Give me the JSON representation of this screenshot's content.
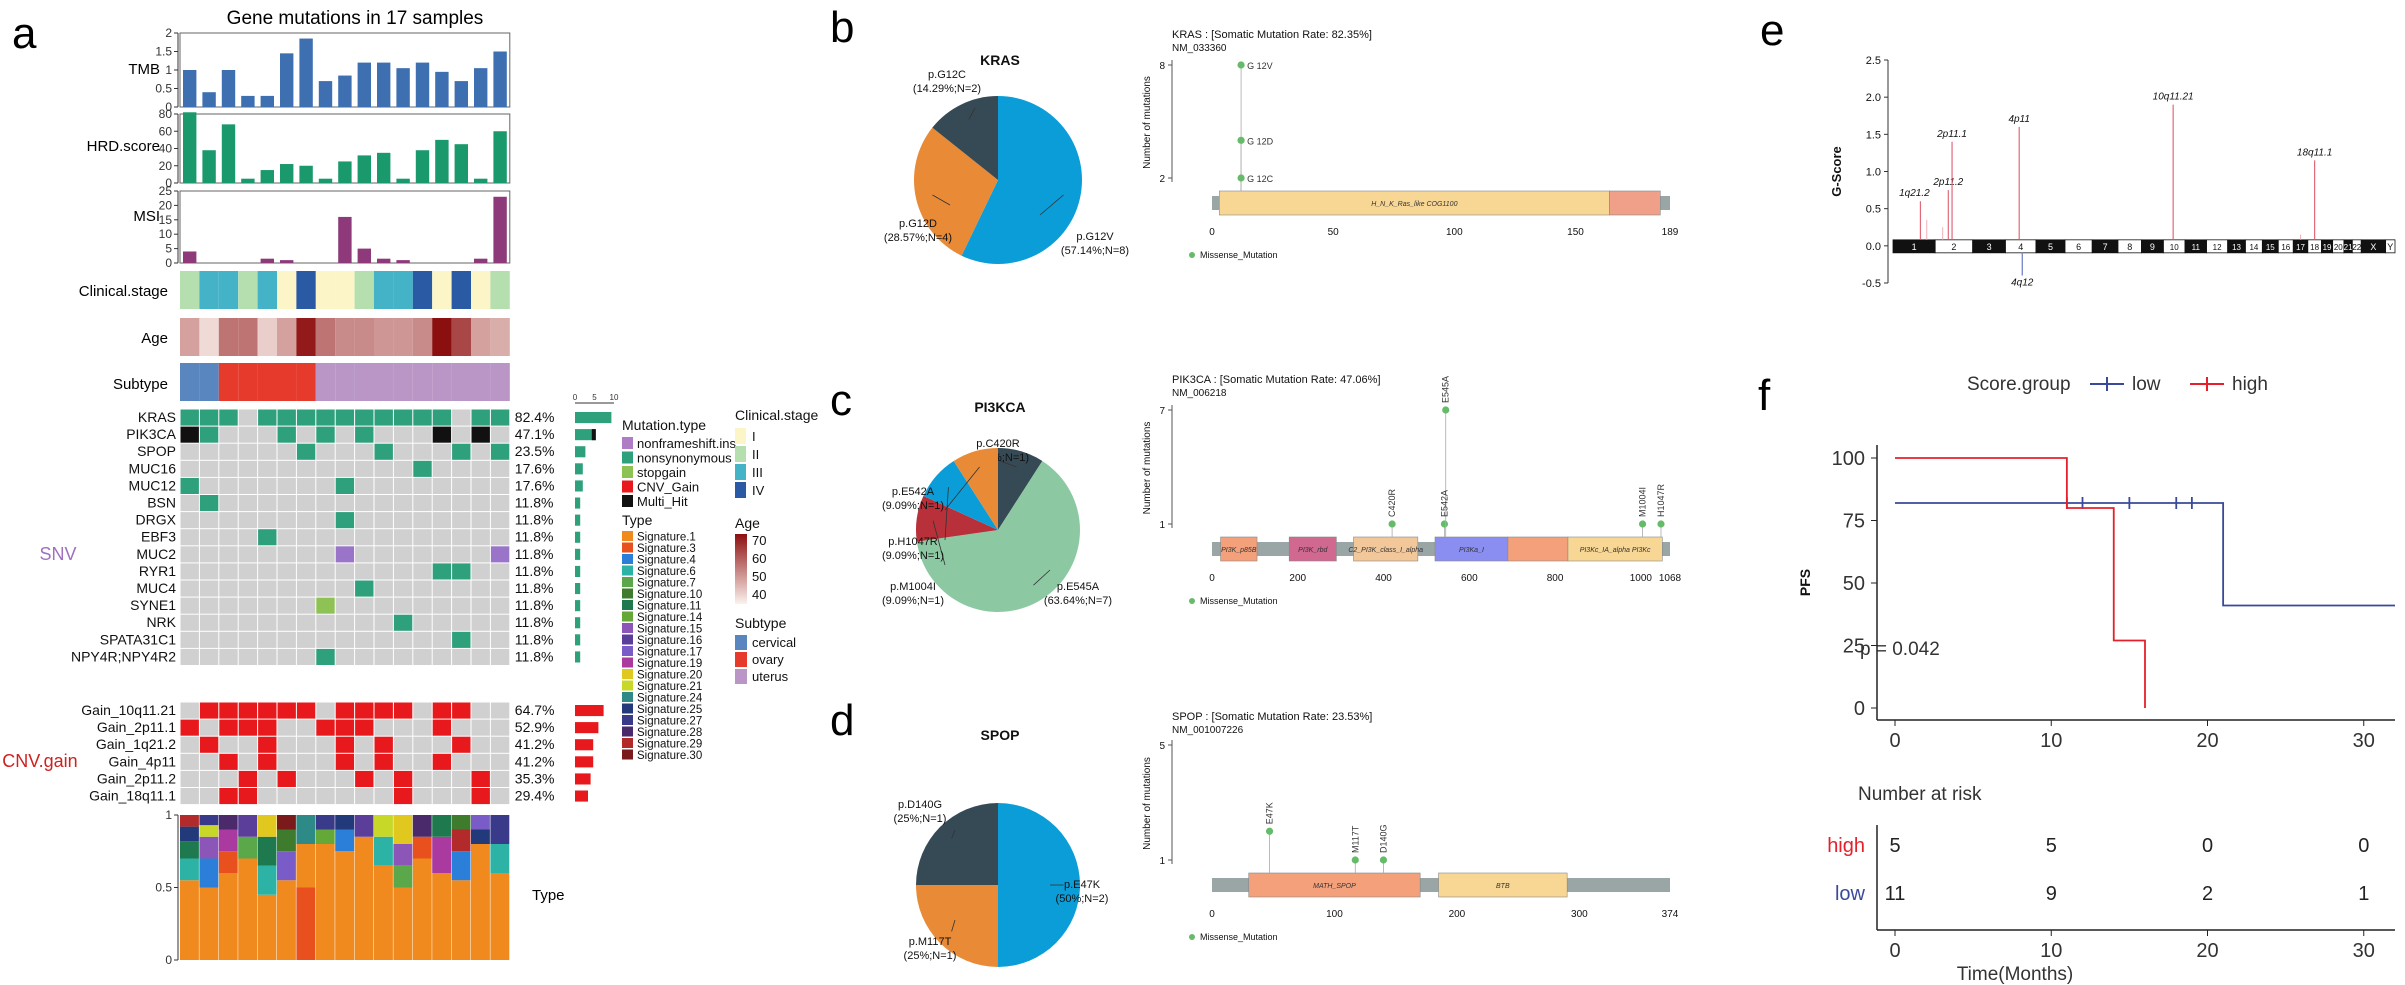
{
  "panel_letters": {
    "a": "a",
    "b": "b",
    "c": "c",
    "d": "d",
    "e": "e",
    "f": "f"
  },
  "colors": {
    "tmb": "#3e6fb0",
    "hrd": "#1a9a6c",
    "msi": "#8e3a7a",
    "mut_green": "#2ea07c",
    "mut_black": "#111111",
    "cnv": "#e8191c",
    "grey": "#d0d0d0",
    "stage1": "#fbf5c8",
    "stage2": "#b6dfb0",
    "stage3": "#44b3c8",
    "stage4": "#2a5aa4",
    "cervical": "#5a86c0",
    "ovary": "#e63a2c",
    "uterus": "#b996c6",
    "lolli": "#66bb6a",
    "kras_blue": "#0b9dd8",
    "kras_orange": "#e88a36",
    "kras_dark": "#364a55",
    "pik_green": "#8cc9a3",
    "low": "#3a4a9a",
    "high": "#e6202a"
  },
  "panel_a": {
    "title": "Gene mutations in 17 samples",
    "tracks": {
      "tmb": "TMB",
      "hrd": "HRD.score",
      "msi": "MSI",
      "stage": "Clinical.stage",
      "age": "Age",
      "subtype": "Subtype",
      "type": "Type"
    },
    "tmb_axis": [
      "0",
      "0.5",
      "1",
      "1.5",
      "2"
    ],
    "hrd_axis": [
      "0",
      "20",
      "40",
      "60",
      "80"
    ],
    "msi_axis": [
      "0",
      "5",
      "10",
      "15",
      "20",
      "25"
    ],
    "type_axis": [
      "0",
      "0.5",
      "1"
    ],
    "tmb_values": [
      1.0,
      0.4,
      1.0,
      0.3,
      0.3,
      1.45,
      1.85,
      0.7,
      0.85,
      1.2,
      1.2,
      1.05,
      1.2,
      0.95,
      0.7,
      1.05,
      1.5
    ],
    "hrd_values": [
      82,
      38,
      68,
      5,
      15,
      22,
      20,
      5,
      25,
      32,
      35,
      5,
      38,
      50,
      45,
      5,
      60
    ],
    "msi_values": [
      4,
      0,
      0,
      0,
      1.5,
      1,
      0,
      0,
      16,
      5,
      1.5,
      1,
      0,
      0,
      0,
      1.5,
      23
    ],
    "stage_values": [
      "II",
      "III",
      "III",
      "II",
      "III",
      "I",
      "IV",
      "I",
      "I",
      "II",
      "III",
      "III",
      "IV",
      "I",
      "IV",
      "I",
      "II"
    ],
    "age_values": [
      0.35,
      0.1,
      0.55,
      0.55,
      0.15,
      0.35,
      0.95,
      0.55,
      0.45,
      0.45,
      0.4,
      0.4,
      0.45,
      1.0,
      0.75,
      0.35,
      0.3
    ],
    "subtype_values": [
      "cervical",
      "cervical",
      "ovary",
      "ovary",
      "ovary",
      "ovary",
      "ovary",
      "uterus",
      "uterus",
      "uterus",
      "uterus",
      "uterus",
      "uterus",
      "uterus",
      "uterus",
      "uterus",
      "uterus"
    ],
    "snv_group": "SNV",
    "cnv_group": "CNV.gain",
    "scale_labels": [
      "0",
      "5",
      "10"
    ],
    "genes": [
      {
        "name": "KRAS",
        "pct": "82.4%",
        "count": 14,
        "row": "GGGXGGGGGGGGGGXGG"
      },
      {
        "name": "PIK3CA",
        "pct": "47.1%",
        "count": 8,
        "row": "KGXXXGXGXGXXXKXKX"
      },
      {
        "name": "SPOP",
        "pct": "23.5%",
        "count": 4,
        "row": "XXXXXXGXXXGXXXGXG"
      },
      {
        "name": "MUC16",
        "pct": "17.6%",
        "count": 3,
        "row": "XXXXXXXXXXXXGXXXX"
      },
      {
        "name": "MUC12",
        "pct": "17.6%",
        "count": 3,
        "row": "GXXXXXXXGXXXXXXXX"
      },
      {
        "name": "BSN",
        "pct": "11.8%",
        "count": 2,
        "row": "XGXXXXXXXXXXXXXXX"
      },
      {
        "name": "DRGX",
        "pct": "11.8%",
        "count": 2,
        "row": "XXXXXXXXGXXXXXXXX"
      },
      {
        "name": "EBF3",
        "pct": "11.8%",
        "count": 2,
        "row": "XXXXGXXXXXXXXXXXX"
      },
      {
        "name": "MUC2",
        "pct": "11.8%",
        "count": 2,
        "row": "XXXXXXXXPXXXXXXXP"
      },
      {
        "name": "RYR1",
        "pct": "11.8%",
        "count": 2,
        "row": "XXXXXXXXXXXXXGGXX"
      },
      {
        "name": "MUC4",
        "pct": "11.8%",
        "count": 2,
        "row": "XXXXXXXXXGXXXXXXX"
      },
      {
        "name": "SYNE1",
        "pct": "11.8%",
        "count": 2,
        "row": "XXXXXXXLXXXXXXXXX"
      },
      {
        "name": "NRK",
        "pct": "11.8%",
        "count": 2,
        "row": "XXXXXXXXXXXGXXXXX"
      },
      {
        "name": "SPATA31C1",
        "pct": "11.8%",
        "count": 2,
        "row": "XXXXXXXXXXXXXXGXX"
      },
      {
        "name": "NPY4R;NPY4R2",
        "pct": "11.8%",
        "count": 2,
        "row": "XXXXXXXGXXXXXXXXX"
      }
    ],
    "cnvs": [
      {
        "name": "Gain_10q11.21",
        "pct": "64.7%",
        "count": 11,
        "row": "XRRRRRRXRRRRXRRXX"
      },
      {
        "name": "Gain_2p11.1",
        "pct": "52.9%",
        "count": 9,
        "row": "RXRRRXXRRRXXXRXXX"
      },
      {
        "name": "Gain_1q21.2",
        "pct": "41.2%",
        "count": 7,
        "row": "XRXXRXXXRXRXXXRXX"
      },
      {
        "name": "Gain_4p11",
        "pct": "41.2%",
        "count": 7,
        "row": "XXRXRXXXRXRXXRXXX"
      },
      {
        "name": "Gain_2p11.2",
        "pct": "35.3%",
        "count": 6,
        "row": "XXXRXRXXXRXRXXXRX"
      },
      {
        "name": "Gain_18q11.1",
        "pct": "29.4%",
        "count": 5,
        "row": "XXRRXXXXXXXRXXXRX"
      }
    ],
    "legend_mutation_title": "Mutation.type",
    "legend_mutation": [
      {
        "label": "nonframeshift.ins",
        "color": "#b07cc6"
      },
      {
        "label": "nonsynonymous",
        "color": "#2ea07c"
      },
      {
        "label": "stopgain",
        "color": "#8fc255"
      },
      {
        "label": "CNV_Gain",
        "color": "#e8191c"
      },
      {
        "label": "Multi_Hit",
        "color": "#111111"
      }
    ],
    "legend_stage_title": "Clinical.stage",
    "legend_stage": [
      {
        "label": "I",
        "color": "#fbf5c8"
      },
      {
        "label": "II",
        "color": "#b6dfb0"
      },
      {
        "label": "III",
        "color": "#44b3c8"
      },
      {
        "label": "IV",
        "color": "#2a5aa4"
      }
    ],
    "legend_type_title": "Type",
    "legend_signatures": [
      {
        "label": "Signature.1",
        "color": "#f08a1e"
      },
      {
        "label": "Signature.3",
        "color": "#e8501e"
      },
      {
        "label": "Signature.4",
        "color": "#2c7fd8"
      },
      {
        "label": "Signature.6",
        "color": "#2db3a6"
      },
      {
        "label": "Signature.7",
        "color": "#5aa84a"
      },
      {
        "label": "Signature.10",
        "color": "#3e7b2c"
      },
      {
        "label": "Signature.11",
        "color": "#1e7a4e"
      },
      {
        "label": "Signature.14",
        "color": "#64a838"
      },
      {
        "label": "Signature.15",
        "color": "#8c56b8"
      },
      {
        "label": "Signature.16",
        "color": "#5a3e9a"
      },
      {
        "label": "Signature.17",
        "color": "#7a5cc8"
      },
      {
        "label": "Signature.19",
        "color": "#aa3aa0"
      },
      {
        "label": "Signature.20",
        "color": "#e0c81e"
      },
      {
        "label": "Signature.21",
        "color": "#c8d828"
      },
      {
        "label": "Signature.24",
        "color": "#2e8a86"
      },
      {
        "label": "Signature.25",
        "color": "#233a7a"
      },
      {
        "label": "Signature.27",
        "color": "#3a3a8a"
      },
      {
        "label": "Signature.28",
        "color": "#4a2a6a"
      },
      {
        "label": "Signature.29",
        "color": "#b22a2a"
      },
      {
        "label": "Signature.30",
        "color": "#7a1a1a"
      }
    ],
    "legend_age_title": "Age",
    "legend_age_ticks": [
      "70",
      "60",
      "50",
      "40"
    ],
    "legend_subtype_title": "Subtype",
    "legend_subtype": [
      {
        "label": "cervical",
        "color": "#5a86c0"
      },
      {
        "label": "ovary",
        "color": "#e63a2c"
      },
      {
        "label": "uterus",
        "color": "#b996c6"
      }
    ]
  },
  "panel_b": {
    "gene": "KRAS",
    "pie": [
      {
        "label": "p.G12V",
        "sub": "(57.14%;N=8)",
        "value": 57.14,
        "color": "#0b9dd8"
      },
      {
        "label": "p.G12D",
        "sub": "(28.57%;N=4)",
        "value": 28.57,
        "color": "#e88a36"
      },
      {
        "label": "p.G12C",
        "sub": "(14.29%;N=2)",
        "value": 14.29,
        "color": "#364a55"
      }
    ],
    "header": "KRAS : [Somatic Mutation Rate: 82.35%]",
    "accession": "NM_033360",
    "ylabel": "Number of mutations",
    "y_ticks": [
      "2",
      "8"
    ],
    "length": 189,
    "x_ticks": [
      "0",
      "50",
      "100",
      "150",
      "189"
    ],
    "domains": [
      {
        "name": "H_N_K_Ras_like",
        "extra": "COG1100",
        "start": 3,
        "end": 164,
        "color": "#f8d795"
      },
      {
        "name": "",
        "extra": "",
        "start": 164,
        "end": 185,
        "color": "#f0a088"
      }
    ],
    "mutations": [
      {
        "label": "G 12V",
        "pos": 12,
        "count": 8
      },
      {
        "label": "G 12D",
        "pos": 12,
        "count": 4
      },
      {
        "label": "G 12C",
        "pos": 12,
        "count": 2
      }
    ],
    "legend": "Missense_Mutation"
  },
  "panel_c": {
    "gene": "PI3KCA",
    "pie": [
      {
        "label": "p.C420R",
        "sub": "(9.09%;N=1)",
        "value": 9.09,
        "color": "#364a55"
      },
      {
        "label": "p.E545A",
        "sub": "(63.64%;N=7)",
        "value": 63.64,
        "color": "#8cc9a3"
      },
      {
        "label": "p.M1004I",
        "sub": "(9.09%;N=1)",
        "value": 9.09,
        "color": "#b8303a"
      },
      {
        "label": "p.H1047R",
        "sub": "(9.09%;N=1)",
        "value": 9.09,
        "color": "#0b9dd8"
      },
      {
        "label": "p.E542A",
        "sub": "(9.09%;N=1)",
        "value": 9.09,
        "color": "#e88a36"
      }
    ],
    "header": "PIK3CA : [Somatic Mutation Rate: 47.06%]",
    "accession": "NM_006218",
    "ylabel": "Number of mutations",
    "y_ticks": [
      "1",
      "7"
    ],
    "length": 1068,
    "x_ticks": [
      "0",
      "200",
      "400",
      "600",
      "800",
      "1000",
      "1068"
    ],
    "domains": [
      {
        "name": "PI3K_p85B",
        "extra": "",
        "start": 20,
        "end": 105,
        "color": "#f4a07a"
      },
      {
        "name": "PI3K_rbd",
        "extra": "",
        "start": 180,
        "end": 290,
        "color": "#d06890"
      },
      {
        "name": "C2_PI3K_class_I_alpha",
        "extra": "",
        "start": 330,
        "end": 480,
        "color": "#f2c89a"
      },
      {
        "name": "PI3Ka_I",
        "extra": "",
        "start": 520,
        "end": 690,
        "color": "#8a8ef0"
      },
      {
        "name": "",
        "extra": "",
        "start": 690,
        "end": 830,
        "color": "#f4a07a"
      },
      {
        "name": "PI3Kc_IA_alpha PI3Kc",
        "extra": "",
        "start": 830,
        "end": 1050,
        "color": "#f8d795"
      }
    ],
    "mutations": [
      {
        "label": "C420R",
        "pos": 420,
        "count": 1
      },
      {
        "label": "E542A",
        "pos": 542,
        "count": 1
      },
      {
        "label": "E545A",
        "pos": 545,
        "count": 7
      },
      {
        "label": "M1004I",
        "pos": 1004,
        "count": 1
      },
      {
        "label": "H1047R",
        "pos": 1047,
        "count": 1
      }
    ],
    "legend": "Missense_Mutation"
  },
  "panel_d": {
    "gene": "SPOP",
    "pie": [
      {
        "label": "p.E47K",
        "sub": "(50%;N=2)",
        "value": 50,
        "color": "#0b9dd8"
      },
      {
        "label": "p.M117T",
        "sub": "(25%;N=1)",
        "value": 25,
        "color": "#e88a36"
      },
      {
        "label": "p.D140G",
        "sub": "(25%;N=1)",
        "value": 25,
        "color": "#364a55"
      }
    ],
    "header": "SPOP : [Somatic Mutation Rate: 23.53%]",
    "accession": "NM_001007226",
    "ylabel": "Number of mutations",
    "y_ticks": [
      "1",
      "5"
    ],
    "length": 374,
    "x_ticks": [
      "0",
      "100",
      "200",
      "300",
      "374"
    ],
    "domains": [
      {
        "name": "MATH_SPOP",
        "extra": "",
        "start": 30,
        "end": 170,
        "color": "#f4a07a"
      },
      {
        "name": "BTB",
        "extra": "",
        "start": 185,
        "end": 290,
        "color": "#f8d795"
      }
    ],
    "mutations": [
      {
        "label": "E47K",
        "pos": 47,
        "count": 2
      },
      {
        "label": "M117T",
        "pos": 117,
        "count": 1
      },
      {
        "label": "D140G",
        "pos": 140,
        "count": 1
      }
    ],
    "legend": "Missense_Mutation"
  },
  "panel_e": {
    "ylabel": "G-Score",
    "y_ticks": [
      "-0.5",
      "0.0",
      "0.5",
      "1.0",
      "1.5",
      "2.0",
      "2.5"
    ],
    "ylim": [
      -0.5,
      2.5
    ],
    "chromosomes": [
      "1",
      "2",
      "3",
      "4",
      "5",
      "6",
      "7",
      "8",
      "9",
      "10",
      "11",
      "12",
      "13",
      "14",
      "15",
      "16",
      "17",
      "18",
      "19",
      "20",
      "21",
      "22",
      "X",
      "Y"
    ],
    "peaks": [
      {
        "label": "1q21.2",
        "chr": "1",
        "score": 0.6
      },
      {
        "label": "2p11.2",
        "chr": "2",
        "score": 0.75
      },
      {
        "label": "2p11.1",
        "chr": "2",
        "score": 1.4
      },
      {
        "label": "4p11",
        "chr": "4",
        "score": 1.6
      },
      {
        "label": "4q12",
        "chr": "4",
        "score": -0.4
      },
      {
        "label": "10q11.21",
        "chr": "10",
        "score": 1.9
      },
      {
        "label": "18q11.1",
        "chr": "18",
        "score": 1.15
      }
    ]
  },
  "panel_f": {
    "legend_title": "Score.group",
    "groups": [
      {
        "name": "low",
        "color": "#3a4a9a"
      },
      {
        "name": "high",
        "color": "#e6202a"
      }
    ],
    "ylabel": "PFS",
    "y_ticks": [
      "0",
      "25",
      "50",
      "75",
      "100"
    ],
    "x_ticks": [
      "0",
      "10",
      "20",
      "30"
    ],
    "xlim": [
      0,
      32
    ],
    "pvalue": "p = 0.042",
    "risk_title": "Number at risk",
    "xlabel": "Time(Months)",
    "chart_data": {
      "type": "line",
      "title": "",
      "xlabel": "Time(Months)",
      "ylabel": "PFS",
      "ylim": [
        0,
        100
      ],
      "series": [
        {
          "name": "low",
          "x": [
            0,
            21,
            21,
            32
          ],
          "y": [
            82,
            82,
            41,
            41
          ],
          "censored": [
            11,
            12,
            15,
            18,
            19
          ]
        },
        {
          "name": "high",
          "x": [
            0,
            11,
            11,
            14,
            14,
            16,
            16
          ],
          "y": [
            100,
            100,
            80,
            80,
            27,
            27,
            0
          ],
          "censored": []
        }
      ]
    },
    "risk_table": [
      {
        "group": "high",
        "values": [
          "5",
          "5",
          "0",
          "0"
        ]
      },
      {
        "group": "low",
        "values": [
          "11",
          "9",
          "2",
          "1"
        ]
      }
    ]
  }
}
